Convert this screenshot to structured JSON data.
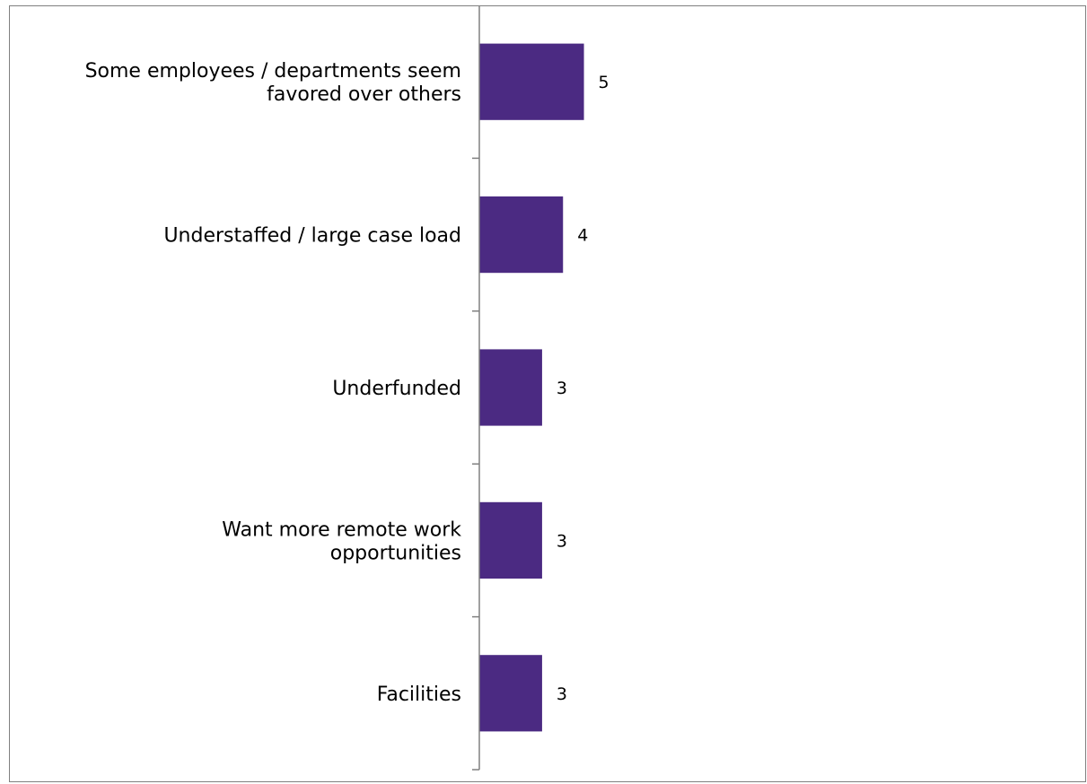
{
  "chart_data": {
    "type": "bar",
    "orientation": "horizontal",
    "categories": [
      "Some employees / departments seem favored over others",
      "Understaffed / large case load",
      "Underfunded",
      "Want more remote work opportunities",
      "Facilities"
    ],
    "values": [
      5,
      4,
      3,
      3,
      3
    ],
    "xlim": [
      0,
      29
    ],
    "grid": false,
    "legend": "none",
    "data_labels": true,
    "colors": {
      "bar": "#4b2a82",
      "axis": "#808080",
      "frame": "#808080",
      "text": "#000000"
    }
  }
}
